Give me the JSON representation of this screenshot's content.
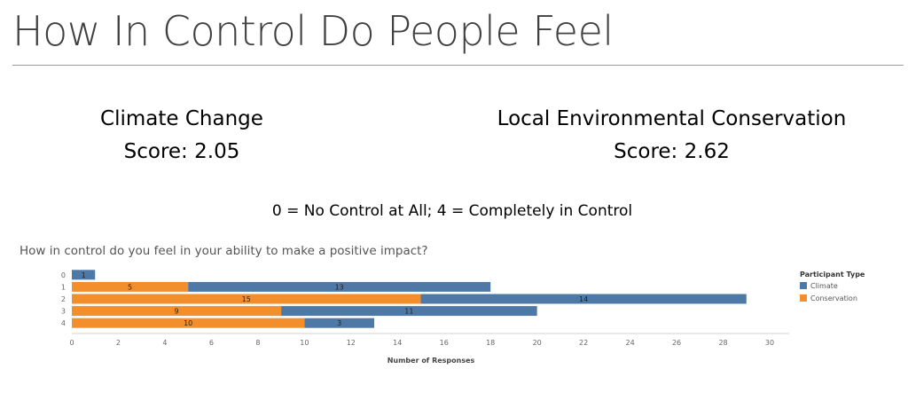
{
  "page": {
    "title": "How In Control Do People Feel",
    "left_score": {
      "name": "Climate Change",
      "score": "Score: 2.05"
    },
    "right_score": {
      "name": "Local Environmental Conservation",
      "score": "Score: 2.62"
    },
    "scale_note": "0 = No Control at All; 4 = Completely in Control"
  },
  "chart_data": {
    "type": "bar",
    "orientation": "horizontal",
    "stacked": true,
    "title": "How in control do you feel in your ability to make a positive impact?",
    "xlabel": "Number of Responses",
    "ylabel": "",
    "categories": [
      "0",
      "1",
      "2",
      "3",
      "4"
    ],
    "series": [
      {
        "name": "Conservation",
        "values": [
          0,
          5,
          15,
          9,
          10
        ],
        "color": "#F28E2B"
      },
      {
        "name": "Climate",
        "values": [
          1,
          13,
          14,
          11,
          3
        ],
        "color": "#4E79A7"
      }
    ],
    "xlim": [
      0,
      30
    ],
    "xticks": [
      0,
      2,
      4,
      6,
      8,
      10,
      12,
      14,
      16,
      18,
      20,
      22,
      24,
      26,
      28,
      30
    ],
    "legend": {
      "title": "Participant Type",
      "placement": "right",
      "entries": [
        {
          "name": "Climate",
          "color": "#4E79A7"
        },
        {
          "name": "Conservation",
          "color": "#F28E2B"
        }
      ]
    },
    "grid": false
  }
}
